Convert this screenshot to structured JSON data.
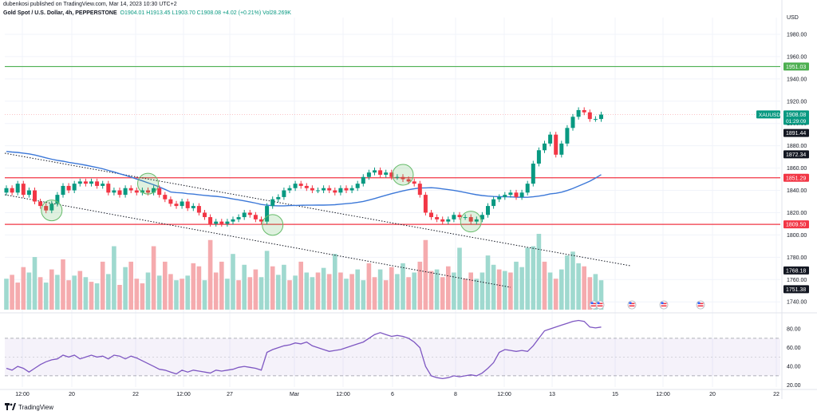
{
  "header": {
    "published_by": "dubenkosi published on TradingView.com, Mar 14, 2023 10:30 UTC+2",
    "symbol_line": "Gold Spot / U.S. Dollar, 4h, PEPPERSTONE",
    "ohlc": "O1904.01  H1913.45  L1903.70  C1908.08  +4.02 (+0.21%)  Vol28.269K"
  },
  "footer": {
    "brand": "TradingView",
    "logo": "tv-logo-icon"
  },
  "chart_data": {
    "type": "candlestick",
    "currency_label": "USD",
    "price_ticks": [
      1740,
      1760,
      1780,
      1800,
      1820,
      1840,
      1860,
      1880,
      1900,
      1920,
      1940,
      1960,
      1980
    ],
    "price_range": [
      1733,
      1995
    ],
    "x_axis_labels": [
      "12:00",
      "20",
      "22",
      "12:00",
      "27",
      "Mar",
      "12:00",
      "6",
      "8",
      "12:00",
      "13",
      "15",
      "12:00",
      "20",
      "22"
    ],
    "horizontal_levels": [
      {
        "value": 1951.03,
        "label": "1951.03",
        "color": "#4caf50"
      },
      {
        "value": 1851.29,
        "label": "1851.29",
        "color": "#f23645"
      },
      {
        "value": 1809.5,
        "label": "1809.50",
        "color": "#f23645"
      }
    ],
    "price_tags": [
      {
        "label": "XAUUSD",
        "value": "1908.08",
        "sub": "01:29:09",
        "color": "#089981"
      },
      {
        "label": "",
        "value": "1891.44",
        "sub": "",
        "color": "#131722"
      },
      {
        "label": "",
        "value": "1872.34",
        "sub": "",
        "color": "#131722"
      },
      {
        "label": "",
        "value": "1768.18",
        "sub": "",
        "color": "#131722"
      },
      {
        "label": "",
        "value": "1751.38",
        "sub": "",
        "color": "#131722"
      }
    ],
    "moving_average": {
      "color": "#3c78d8"
    },
    "closes": [
      1842,
      1838,
      1846,
      1836,
      1840,
      1830,
      1826,
      1822,
      1828,
      1836,
      1844,
      1840,
      1846,
      1848,
      1846,
      1848,
      1844,
      1846,
      1838,
      1840,
      1836,
      1842,
      1840,
      1838,
      1840,
      1838,
      1842,
      1836,
      1832,
      1828,
      1826,
      1830,
      1824,
      1826,
      1820,
      1816,
      1810,
      1812,
      1810,
      1812,
      1814,
      1816,
      1820,
      1818,
      1814,
      1812,
      1826,
      1832,
      1834,
      1840,
      1842,
      1846,
      1844,
      1842,
      1840,
      1840,
      1842,
      1840,
      1838,
      1842,
      1840,
      1842,
      1846,
      1852,
      1856,
      1858,
      1854,
      1856,
      1852,
      1852,
      1850,
      1848,
      1846,
      1836,
      1820,
      1816,
      1814,
      1812,
      1814,
      1818,
      1816,
      1816,
      1812,
      1814,
      1818,
      1826,
      1832,
      1834,
      1836,
      1838,
      1834,
      1838,
      1846,
      1864,
      1876,
      1882,
      1890,
      1872,
      1882,
      1896,
      1906,
      1912,
      1910,
      1904,
      1904,
      1908
    ],
    "volume": [
      [
        1,
        40
      ],
      [
        0,
        45
      ],
      [
        0,
        35
      ],
      [
        0,
        55
      ],
      [
        1,
        48
      ],
      [
        1,
        68
      ],
      [
        0,
        42
      ],
      [
        1,
        35
      ],
      [
        0,
        52
      ],
      [
        1,
        45
      ],
      [
        0,
        65
      ],
      [
        0,
        38
      ],
      [
        1,
        44
      ],
      [
        0,
        50
      ],
      [
        1,
        42
      ],
      [
        0,
        36
      ],
      [
        1,
        34
      ],
      [
        0,
        62
      ],
      [
        1,
        46
      ],
      [
        1,
        82
      ],
      [
        0,
        32
      ],
      [
        1,
        55
      ],
      [
        0,
        62
      ],
      [
        0,
        40
      ],
      [
        0,
        34
      ],
      [
        1,
        48
      ],
      [
        0,
        82
      ],
      [
        1,
        44
      ],
      [
        0,
        62
      ],
      [
        0,
        46
      ],
      [
        1,
        38
      ],
      [
        0,
        40
      ],
      [
        1,
        44
      ],
      [
        0,
        60
      ],
      [
        0,
        56
      ],
      [
        1,
        38
      ],
      [
        0,
        90
      ],
      [
        0,
        48
      ],
      [
        0,
        62
      ],
      [
        1,
        40
      ],
      [
        1,
        72
      ],
      [
        0,
        38
      ],
      [
        1,
        58
      ],
      [
        0,
        42
      ],
      [
        0,
        52
      ],
      [
        1,
        42
      ],
      [
        1,
        76
      ],
      [
        0,
        56
      ],
      [
        1,
        45
      ],
      [
        1,
        58
      ],
      [
        0,
        38
      ],
      [
        1,
        44
      ],
      [
        0,
        62
      ],
      [
        1,
        48
      ],
      [
        1,
        42
      ],
      [
        0,
        48
      ],
      [
        1,
        54
      ],
      [
        0,
        46
      ],
      [
        1,
        72
      ],
      [
        0,
        48
      ],
      [
        1,
        40
      ],
      [
        0,
        46
      ],
      [
        1,
        52
      ],
      [
        1,
        38
      ],
      [
        0,
        60
      ],
      [
        0,
        42
      ],
      [
        1,
        52
      ],
      [
        0,
        38
      ],
      [
        0,
        55
      ],
      [
        1,
        46
      ],
      [
        1,
        60
      ],
      [
        0,
        42
      ],
      [
        1,
        48
      ],
      [
        0,
        62
      ],
      [
        0,
        90
      ],
      [
        0,
        50
      ],
      [
        1,
        52
      ],
      [
        0,
        42
      ],
      [
        0,
        56
      ],
      [
        1,
        48
      ],
      [
        1,
        80
      ],
      [
        0,
        40
      ],
      [
        0,
        48
      ],
      [
        1,
        40
      ],
      [
        1,
        48
      ],
      [
        1,
        70
      ],
      [
        1,
        58
      ],
      [
        0,
        52
      ],
      [
        1,
        50
      ],
      [
        0,
        48
      ],
      [
        1,
        62
      ],
      [
        1,
        55
      ],
      [
        1,
        80
      ],
      [
        1,
        82
      ],
      [
        1,
        98
      ],
      [
        0,
        62
      ],
      [
        1,
        48
      ],
      [
        0,
        40
      ],
      [
        1,
        52
      ],
      [
        1,
        70
      ],
      [
        1,
        75
      ],
      [
        1,
        60
      ],
      [
        0,
        56
      ],
      [
        0,
        42
      ],
      [
        1,
        46
      ],
      [
        1,
        38
      ]
    ],
    "rsi": {
      "ticks": [
        20,
        40,
        60,
        80
      ],
      "range": [
        18,
        92
      ],
      "band": [
        30,
        70
      ],
      "midline": 50,
      "color": "#7e57c2",
      "values": [
        38,
        36,
        40,
        38,
        34,
        38,
        42,
        45,
        47,
        48,
        52,
        50,
        52,
        48,
        50,
        52,
        50,
        51,
        48,
        52,
        51,
        48,
        51,
        49,
        46,
        43,
        40,
        37,
        36,
        34,
        32,
        36,
        34,
        36,
        35,
        34,
        33,
        36,
        35,
        36,
        37,
        39,
        40,
        39,
        38,
        36,
        55,
        58,
        60,
        62,
        63,
        65,
        64,
        66,
        62,
        60,
        58,
        56,
        57,
        58,
        60,
        62,
        64,
        66,
        70,
        74,
        76,
        74,
        72,
        73,
        72,
        70,
        66,
        60,
        40,
        30,
        28,
        27,
        28,
        30,
        29,
        30,
        31,
        30,
        33,
        38,
        44,
        55,
        58,
        57,
        56,
        57,
        56,
        62,
        70,
        78,
        80,
        82,
        84,
        86,
        88,
        89,
        88,
        82,
        81,
        82
      ]
    }
  }
}
